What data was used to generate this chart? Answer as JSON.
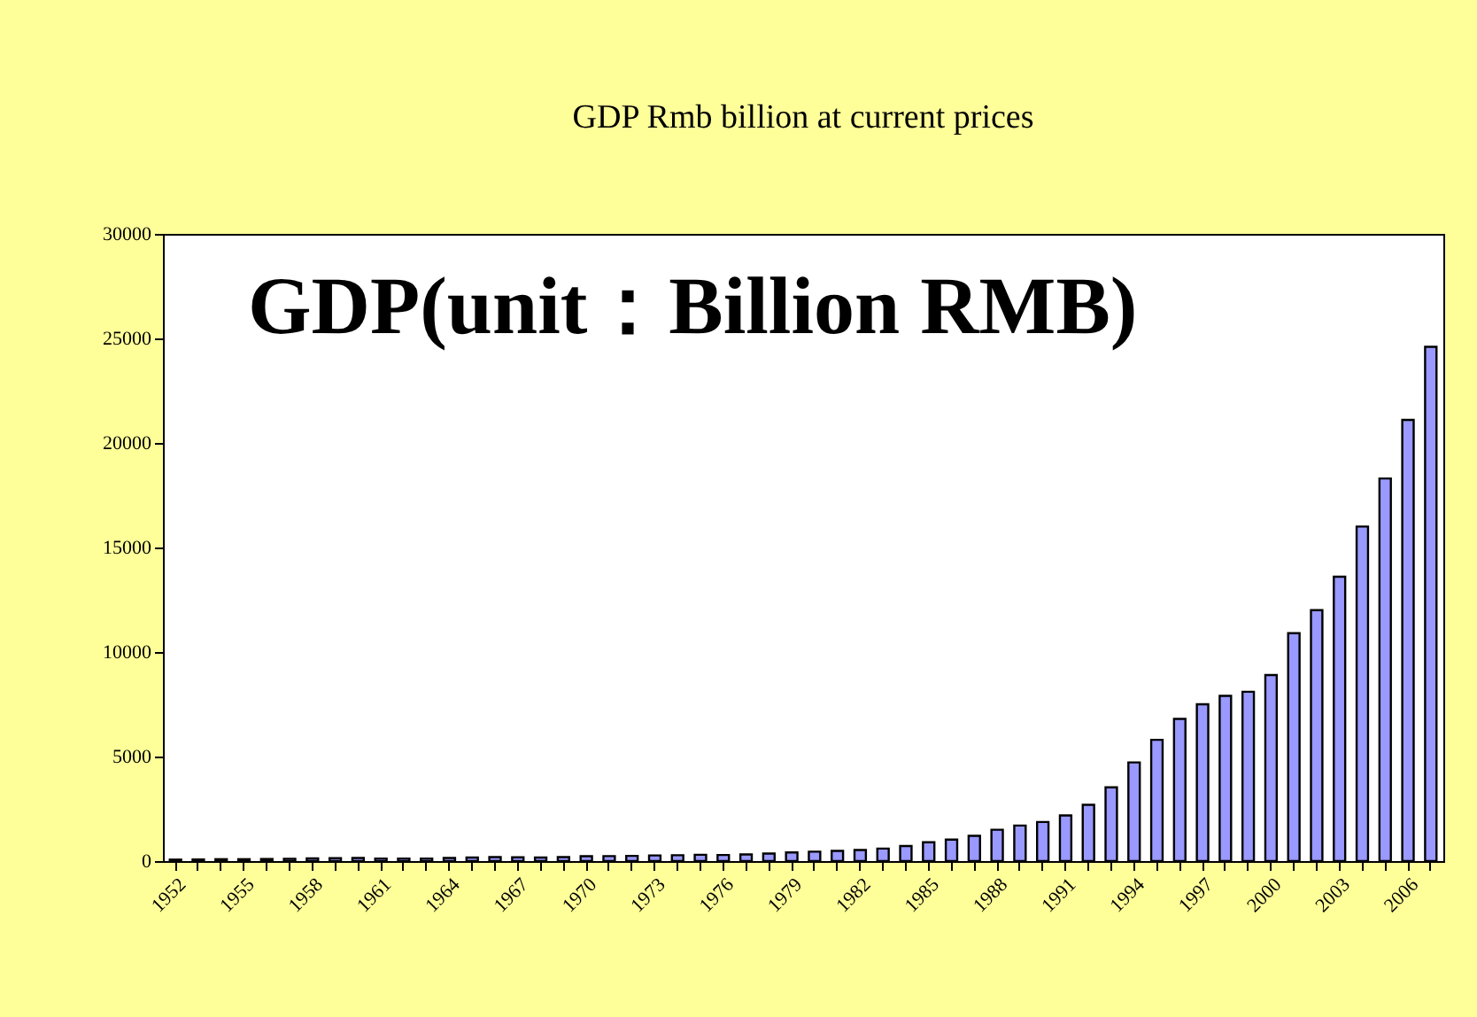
{
  "chart_data": {
    "type": "bar",
    "title": "GDP Rmb billion at current prices",
    "annotations": [
      "GDP(unit：Billion RMB)"
    ],
    "categories": [
      "1952",
      null,
      null,
      "1955",
      null,
      null,
      "1958",
      null,
      null,
      "1961",
      null,
      null,
      "1964",
      null,
      null,
      "1967",
      null,
      null,
      "1970",
      null,
      null,
      "1973",
      null,
      null,
      "1976",
      null,
      null,
      "1979",
      null,
      null,
      "1982",
      null,
      null,
      "1985",
      null,
      null,
      "1988",
      null,
      null,
      "1991",
      null,
      null,
      "1994",
      null,
      null,
      "1997",
      null,
      null,
      "2000",
      null,
      null,
      "2003",
      null,
      null,
      "2006",
      null
    ],
    "values": [
      70,
      80,
      90,
      90,
      100,
      110,
      130,
      140,
      150,
      120,
      120,
      120,
      150,
      170,
      190,
      180,
      170,
      190,
      230,
      240,
      250,
      270,
      280,
      300,
      290,
      320,
      360,
      410,
      450,
      490,
      530,
      600,
      720,
      900,
      1030,
      1210,
      1500,
      1700,
      1870,
      2180,
      2690,
      3530,
      4720,
      5800,
      6800,
      7500,
      7900,
      8100,
      8900,
      10900,
      12000,
      13600,
      16000,
      18300,
      21100,
      24600
    ],
    "color": "#9999ff",
    "ylim": [
      0,
      30000
    ],
    "yticks": [
      0,
      5000,
      10000,
      15000,
      20000,
      25000,
      30000
    ],
    "grid": false
  }
}
